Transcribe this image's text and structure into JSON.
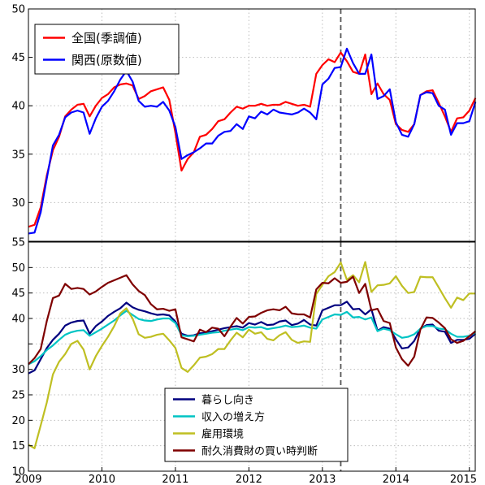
{
  "chart_data": [
    {
      "type": "line",
      "panel": "top",
      "x_unit": "year",
      "xlim": [
        2009.0,
        2015.08
      ],
      "ylim": [
        26,
        50
      ],
      "y_ticks": [
        30,
        35,
        40,
        45,
        50
      ],
      "grid": true,
      "legend_position": "top-left",
      "vline_x": 2013.25,
      "series": [
        {
          "name": "全国(季調値)",
          "color": "#ff0000",
          "x": [
            2009.0,
            2009.083,
            2009.167,
            2009.25,
            2009.333,
            2009.417,
            2009.5,
            2009.583,
            2009.667,
            2009.75,
            2009.833,
            2009.917,
            2010.0,
            2010.083,
            2010.167,
            2010.25,
            2010.333,
            2010.417,
            2010.5,
            2010.583,
            2010.667,
            2010.75,
            2010.833,
            2010.917,
            2011.0,
            2011.083,
            2011.167,
            2011.25,
            2011.333,
            2011.417,
            2011.5,
            2011.583,
            2011.667,
            2011.75,
            2011.833,
            2011.917,
            2012.0,
            2012.083,
            2012.167,
            2012.25,
            2012.333,
            2012.417,
            2012.5,
            2012.583,
            2012.667,
            2012.75,
            2012.833,
            2012.917,
            2013.0,
            2013.083,
            2013.167,
            2013.25,
            2013.333,
            2013.417,
            2013.5,
            2013.583,
            2013.667,
            2013.75,
            2013.833,
            2013.917,
            2014.0,
            2014.083,
            2014.167,
            2014.25,
            2014.333,
            2014.417,
            2014.5,
            2014.583,
            2014.667,
            2014.75,
            2014.833,
            2014.917,
            2015.0,
            2015.083
          ],
          "y": [
            27.5,
            27.7,
            29.5,
            32.8,
            35.4,
            36.8,
            38.9,
            39.6,
            40.1,
            40.2,
            38.9,
            40.0,
            40.8,
            41.2,
            41.9,
            42.2,
            42.3,
            42.1,
            40.7,
            41.0,
            41.5,
            41.7,
            41.9,
            40.6,
            37.2,
            33.3,
            34.5,
            35.2,
            36.8,
            37.0,
            37.6,
            38.4,
            38.6,
            39.3,
            39.9,
            39.7,
            40.0,
            40.0,
            40.2,
            40.0,
            40.1,
            40.1,
            40.4,
            40.2,
            40.0,
            40.1,
            39.9,
            43.3,
            44.2,
            44.8,
            44.5,
            45.5,
            44.6,
            43.5,
            43.3,
            45.3,
            41.2,
            42.3,
            41.2,
            40.6,
            38.1,
            37.5,
            37.3,
            38.1,
            41.1,
            41.5,
            41.6,
            40.3,
            38.9,
            37.3,
            38.7,
            38.8,
            39.5,
            40.8
          ]
        },
        {
          "name": "関西(原数値)",
          "color": "#0000ff",
          "x": [
            2009.0,
            2009.083,
            2009.167,
            2009.25,
            2009.333,
            2009.417,
            2009.5,
            2009.583,
            2009.667,
            2009.75,
            2009.833,
            2009.917,
            2010.0,
            2010.083,
            2010.167,
            2010.25,
            2010.333,
            2010.417,
            2010.5,
            2010.583,
            2010.667,
            2010.75,
            2010.833,
            2010.917,
            2011.0,
            2011.083,
            2011.167,
            2011.25,
            2011.333,
            2011.417,
            2011.5,
            2011.583,
            2011.667,
            2011.75,
            2011.833,
            2011.917,
            2012.0,
            2012.083,
            2012.167,
            2012.25,
            2012.333,
            2012.417,
            2012.5,
            2012.583,
            2012.667,
            2012.75,
            2012.833,
            2012.917,
            2013.0,
            2013.083,
            2013.167,
            2013.25,
            2013.333,
            2013.417,
            2013.5,
            2013.583,
            2013.667,
            2013.75,
            2013.833,
            2013.917,
            2014.0,
            2014.083,
            2014.167,
            2014.25,
            2014.333,
            2014.417,
            2014.5,
            2014.583,
            2014.667,
            2014.75,
            2014.833,
            2014.917,
            2015.0,
            2015.083
          ],
          "y": [
            26.8,
            26.9,
            29.0,
            32.5,
            35.9,
            37.0,
            38.8,
            39.3,
            39.5,
            39.3,
            37.1,
            38.7,
            39.9,
            40.5,
            41.5,
            42.7,
            43.6,
            42.5,
            40.5,
            39.9,
            40.0,
            39.9,
            40.4,
            39.5,
            37.8,
            34.5,
            34.9,
            35.2,
            35.6,
            36.1,
            36.1,
            36.9,
            37.3,
            37.4,
            38.1,
            37.6,
            38.9,
            38.7,
            39.4,
            39.1,
            39.6,
            39.3,
            39.2,
            39.1,
            39.3,
            39.7,
            39.3,
            38.6,
            42.2,
            42.8,
            43.9,
            44.0,
            45.9,
            44.4,
            43.3,
            43.3,
            45.3,
            40.7,
            41.0,
            41.7,
            38.3,
            37.0,
            36.8,
            38.1,
            41.1,
            41.4,
            41.3,
            40.0,
            39.6,
            37.0,
            38.2,
            38.2,
            38.4,
            40.4
          ]
        }
      ]
    },
    {
      "type": "line",
      "panel": "bottom",
      "x_unit": "year",
      "xlim": [
        2009.0,
        2015.08
      ],
      "ylim": [
        10,
        55
      ],
      "y_ticks": [
        10,
        15,
        20,
        25,
        30,
        35,
        40,
        45,
        50,
        55
      ],
      "y_tick_labels": [
        "10",
        "15",
        "20",
        "25",
        "30",
        "",
        "40",
        "45",
        "50",
        "55"
      ],
      "x_ticks": [
        2009,
        2010,
        2011,
        2012,
        2013,
        2014,
        2015
      ],
      "x_tick_labels": [
        "2009",
        "2010",
        "2011",
        "2012",
        "2013",
        "2014",
        "2015"
      ],
      "grid": true,
      "legend_position": "bottom-center",
      "vline_x": 2013.25,
      "series": [
        {
          "name": "暮らし向き",
          "color": "#00007f",
          "x": [
            2009.0,
            2009.083,
            2009.167,
            2009.25,
            2009.333,
            2009.417,
            2009.5,
            2009.583,
            2009.667,
            2009.75,
            2009.833,
            2009.917,
            2010.0,
            2010.083,
            2010.167,
            2010.25,
            2010.333,
            2010.417,
            2010.5,
            2010.583,
            2010.667,
            2010.75,
            2010.833,
            2010.917,
            2011.0,
            2011.083,
            2011.167,
            2011.25,
            2011.333,
            2011.417,
            2011.5,
            2011.583,
            2011.667,
            2011.75,
            2011.833,
            2011.917,
            2012.0,
            2012.083,
            2012.167,
            2012.25,
            2012.333,
            2012.417,
            2012.5,
            2012.583,
            2012.667,
            2012.75,
            2012.833,
            2012.917,
            2013.0,
            2013.083,
            2013.167,
            2013.25,
            2013.333,
            2013.417,
            2013.5,
            2013.583,
            2013.667,
            2013.75,
            2013.833,
            2013.917,
            2014.0,
            2014.083,
            2014.167,
            2014.25,
            2014.333,
            2014.417,
            2014.5,
            2014.583,
            2014.667,
            2014.75,
            2014.833,
            2014.917,
            2015.0,
            2015.083
          ],
          "y": [
            29.2,
            29.8,
            32.0,
            34.2,
            35.8,
            37.0,
            38.6,
            39.2,
            39.5,
            39.6,
            37.0,
            38.5,
            39.4,
            40.5,
            41.3,
            42.0,
            43.1,
            42.2,
            41.7,
            41.4,
            41.0,
            40.7,
            40.8,
            40.6,
            39.4,
            37.0,
            36.6,
            36.7,
            37.1,
            37.2,
            37.5,
            37.8,
            38.1,
            38.3,
            38.5,
            38.2,
            39.1,
            38.8,
            39.3,
            38.7,
            38.8,
            39.4,
            39.6,
            38.7,
            39.0,
            39.7,
            38.8,
            38.6,
            41.6,
            42.1,
            42.6,
            42.6,
            43.3,
            41.8,
            41.9,
            40.8,
            41.8,
            37.6,
            38.3,
            38.0,
            35.9,
            34.1,
            34.3,
            35.6,
            38.0,
            38.7,
            38.8,
            37.6,
            37.4,
            35.2,
            35.8,
            35.8,
            36.0,
            37.0
          ]
        },
        {
          "name": "収入の増え方",
          "color": "#00c4c4",
          "x": [
            2009.0,
            2009.083,
            2009.167,
            2009.25,
            2009.333,
            2009.417,
            2009.5,
            2009.583,
            2009.667,
            2009.75,
            2009.833,
            2009.917,
            2010.0,
            2010.083,
            2010.167,
            2010.25,
            2010.333,
            2010.417,
            2010.5,
            2010.583,
            2010.667,
            2010.75,
            2010.833,
            2010.917,
            2011.0,
            2011.083,
            2011.167,
            2011.25,
            2011.333,
            2011.417,
            2011.5,
            2011.583,
            2011.667,
            2011.75,
            2011.833,
            2011.917,
            2012.0,
            2012.083,
            2012.167,
            2012.25,
            2012.333,
            2012.417,
            2012.5,
            2012.583,
            2012.667,
            2012.75,
            2012.833,
            2012.917,
            2013.0,
            2013.083,
            2013.167,
            2013.25,
            2013.333,
            2013.417,
            2013.5,
            2013.583,
            2013.667,
            2013.75,
            2013.833,
            2013.917,
            2014.0,
            2014.083,
            2014.167,
            2014.25,
            2014.333,
            2014.417,
            2014.5,
            2014.583,
            2014.667,
            2014.75,
            2014.833,
            2014.917,
            2015.0,
            2015.083
          ],
          "y": [
            31.0,
            31.6,
            32.6,
            33.8,
            34.7,
            35.8,
            36.8,
            37.3,
            37.6,
            37.7,
            36.6,
            37.3,
            38.0,
            38.8,
            39.6,
            40.6,
            41.5,
            40.7,
            39.9,
            39.6,
            39.5,
            39.8,
            40.0,
            40.0,
            39.1,
            36.7,
            36.5,
            36.6,
            36.8,
            37.0,
            37.2,
            37.3,
            37.6,
            37.8,
            38.0,
            37.7,
            38.3,
            38.2,
            38.3,
            37.9,
            38.1,
            38.3,
            38.6,
            38.3,
            38.4,
            38.6,
            38.2,
            38.0,
            39.8,
            40.3,
            40.8,
            40.7,
            41.3,
            40.2,
            40.3,
            39.8,
            40.2,
            37.5,
            38.0,
            37.7,
            36.9,
            36.2,
            36.4,
            36.9,
            38.0,
            38.5,
            38.5,
            38.0,
            37.9,
            37.0,
            36.4,
            36.4,
            36.6,
            37.2
          ]
        },
        {
          "name": "雇用環境",
          "color": "#bfbf22",
          "x": [
            2009.0,
            2009.083,
            2009.167,
            2009.25,
            2009.333,
            2009.417,
            2009.5,
            2009.583,
            2009.667,
            2009.75,
            2009.833,
            2009.917,
            2010.0,
            2010.083,
            2010.167,
            2010.25,
            2010.333,
            2010.417,
            2010.5,
            2010.583,
            2010.667,
            2010.75,
            2010.833,
            2010.917,
            2011.0,
            2011.083,
            2011.167,
            2011.25,
            2011.333,
            2011.417,
            2011.5,
            2011.583,
            2011.667,
            2011.75,
            2011.833,
            2011.917,
            2012.0,
            2012.083,
            2012.167,
            2012.25,
            2012.333,
            2012.417,
            2012.5,
            2012.583,
            2012.667,
            2012.75,
            2012.833,
            2012.917,
            2013.0,
            2013.083,
            2013.167,
            2013.25,
            2013.333,
            2013.417,
            2013.5,
            2013.583,
            2013.667,
            2013.75,
            2013.833,
            2013.917,
            2014.0,
            2014.083,
            2014.167,
            2014.25,
            2014.333,
            2014.417,
            2014.5,
            2014.583,
            2014.667,
            2014.75,
            2014.833,
            2014.917,
            2015.0,
            2015.083
          ],
          "y": [
            15.2,
            14.5,
            19.0,
            23.5,
            29.0,
            31.5,
            33.0,
            35.0,
            35.6,
            33.9,
            30.0,
            32.6,
            34.6,
            36.4,
            38.5,
            41.0,
            42.0,
            40.0,
            36.9,
            36.2,
            36.4,
            36.8,
            37.0,
            35.7,
            34.2,
            30.3,
            29.5,
            30.8,
            32.3,
            32.5,
            33.0,
            34.0,
            34.0,
            35.7,
            37.2,
            36.3,
            37.8,
            37.0,
            37.3,
            36.0,
            35.7,
            36.7,
            37.3,
            35.8,
            35.2,
            35.5,
            35.4,
            44.8,
            46.6,
            48.3,
            49.1,
            51.0,
            47.6,
            48.5,
            47.1,
            51.1,
            45.2,
            46.5,
            46.6,
            46.9,
            48.3,
            46.4,
            45.0,
            45.2,
            48.2,
            48.1,
            48.1,
            46.1,
            44.0,
            42.1,
            44.1,
            43.6,
            44.9,
            44.9
          ]
        },
        {
          "name": "耐久消費財の買い時判断",
          "color": "#7f0000",
          "x": [
            2009.0,
            2009.083,
            2009.167,
            2009.25,
            2009.333,
            2009.417,
            2009.5,
            2009.583,
            2009.667,
            2009.75,
            2009.833,
            2009.917,
            2010.0,
            2010.083,
            2010.167,
            2010.25,
            2010.333,
            2010.417,
            2010.5,
            2010.583,
            2010.667,
            2010.75,
            2010.833,
            2010.917,
            2011.0,
            2011.083,
            2011.167,
            2011.25,
            2011.333,
            2011.417,
            2011.5,
            2011.583,
            2011.667,
            2011.75,
            2011.833,
            2011.917,
            2012.0,
            2012.083,
            2012.167,
            2012.25,
            2012.333,
            2012.417,
            2012.5,
            2012.583,
            2012.667,
            2012.75,
            2012.833,
            2012.917,
            2013.0,
            2013.083,
            2013.167,
            2013.25,
            2013.333,
            2013.417,
            2013.5,
            2013.583,
            2013.667,
            2013.75,
            2013.833,
            2013.917,
            2014.0,
            2014.083,
            2014.167,
            2014.25,
            2014.333,
            2014.417,
            2014.5,
            2014.583,
            2014.667,
            2014.75,
            2014.833,
            2014.917,
            2015.0,
            2015.083
          ],
          "y": [
            31.0,
            32.2,
            34.0,
            39.5,
            44.0,
            44.5,
            46.8,
            45.8,
            46.0,
            45.8,
            44.7,
            45.3,
            46.2,
            47.0,
            47.5,
            48.0,
            48.5,
            46.7,
            45.4,
            44.6,
            42.8,
            41.8,
            41.9,
            41.5,
            41.8,
            36.3,
            35.9,
            35.5,
            37.8,
            37.3,
            38.2,
            38.0,
            36.5,
            38.4,
            40.1,
            39.0,
            40.3,
            40.4,
            41.1,
            41.6,
            41.8,
            41.6,
            42.3,
            41.0,
            40.8,
            40.8,
            40.2,
            45.7,
            47.0,
            46.9,
            47.9,
            47.0,
            47.2,
            48.2,
            45.0,
            46.8,
            41.6,
            41.9,
            39.5,
            39.1,
            34.3,
            32.0,
            30.7,
            32.5,
            37.8,
            40.2,
            40.1,
            39.2,
            38.1,
            35.9,
            35.2,
            35.6,
            36.5,
            37.5
          ]
        }
      ]
    }
  ]
}
